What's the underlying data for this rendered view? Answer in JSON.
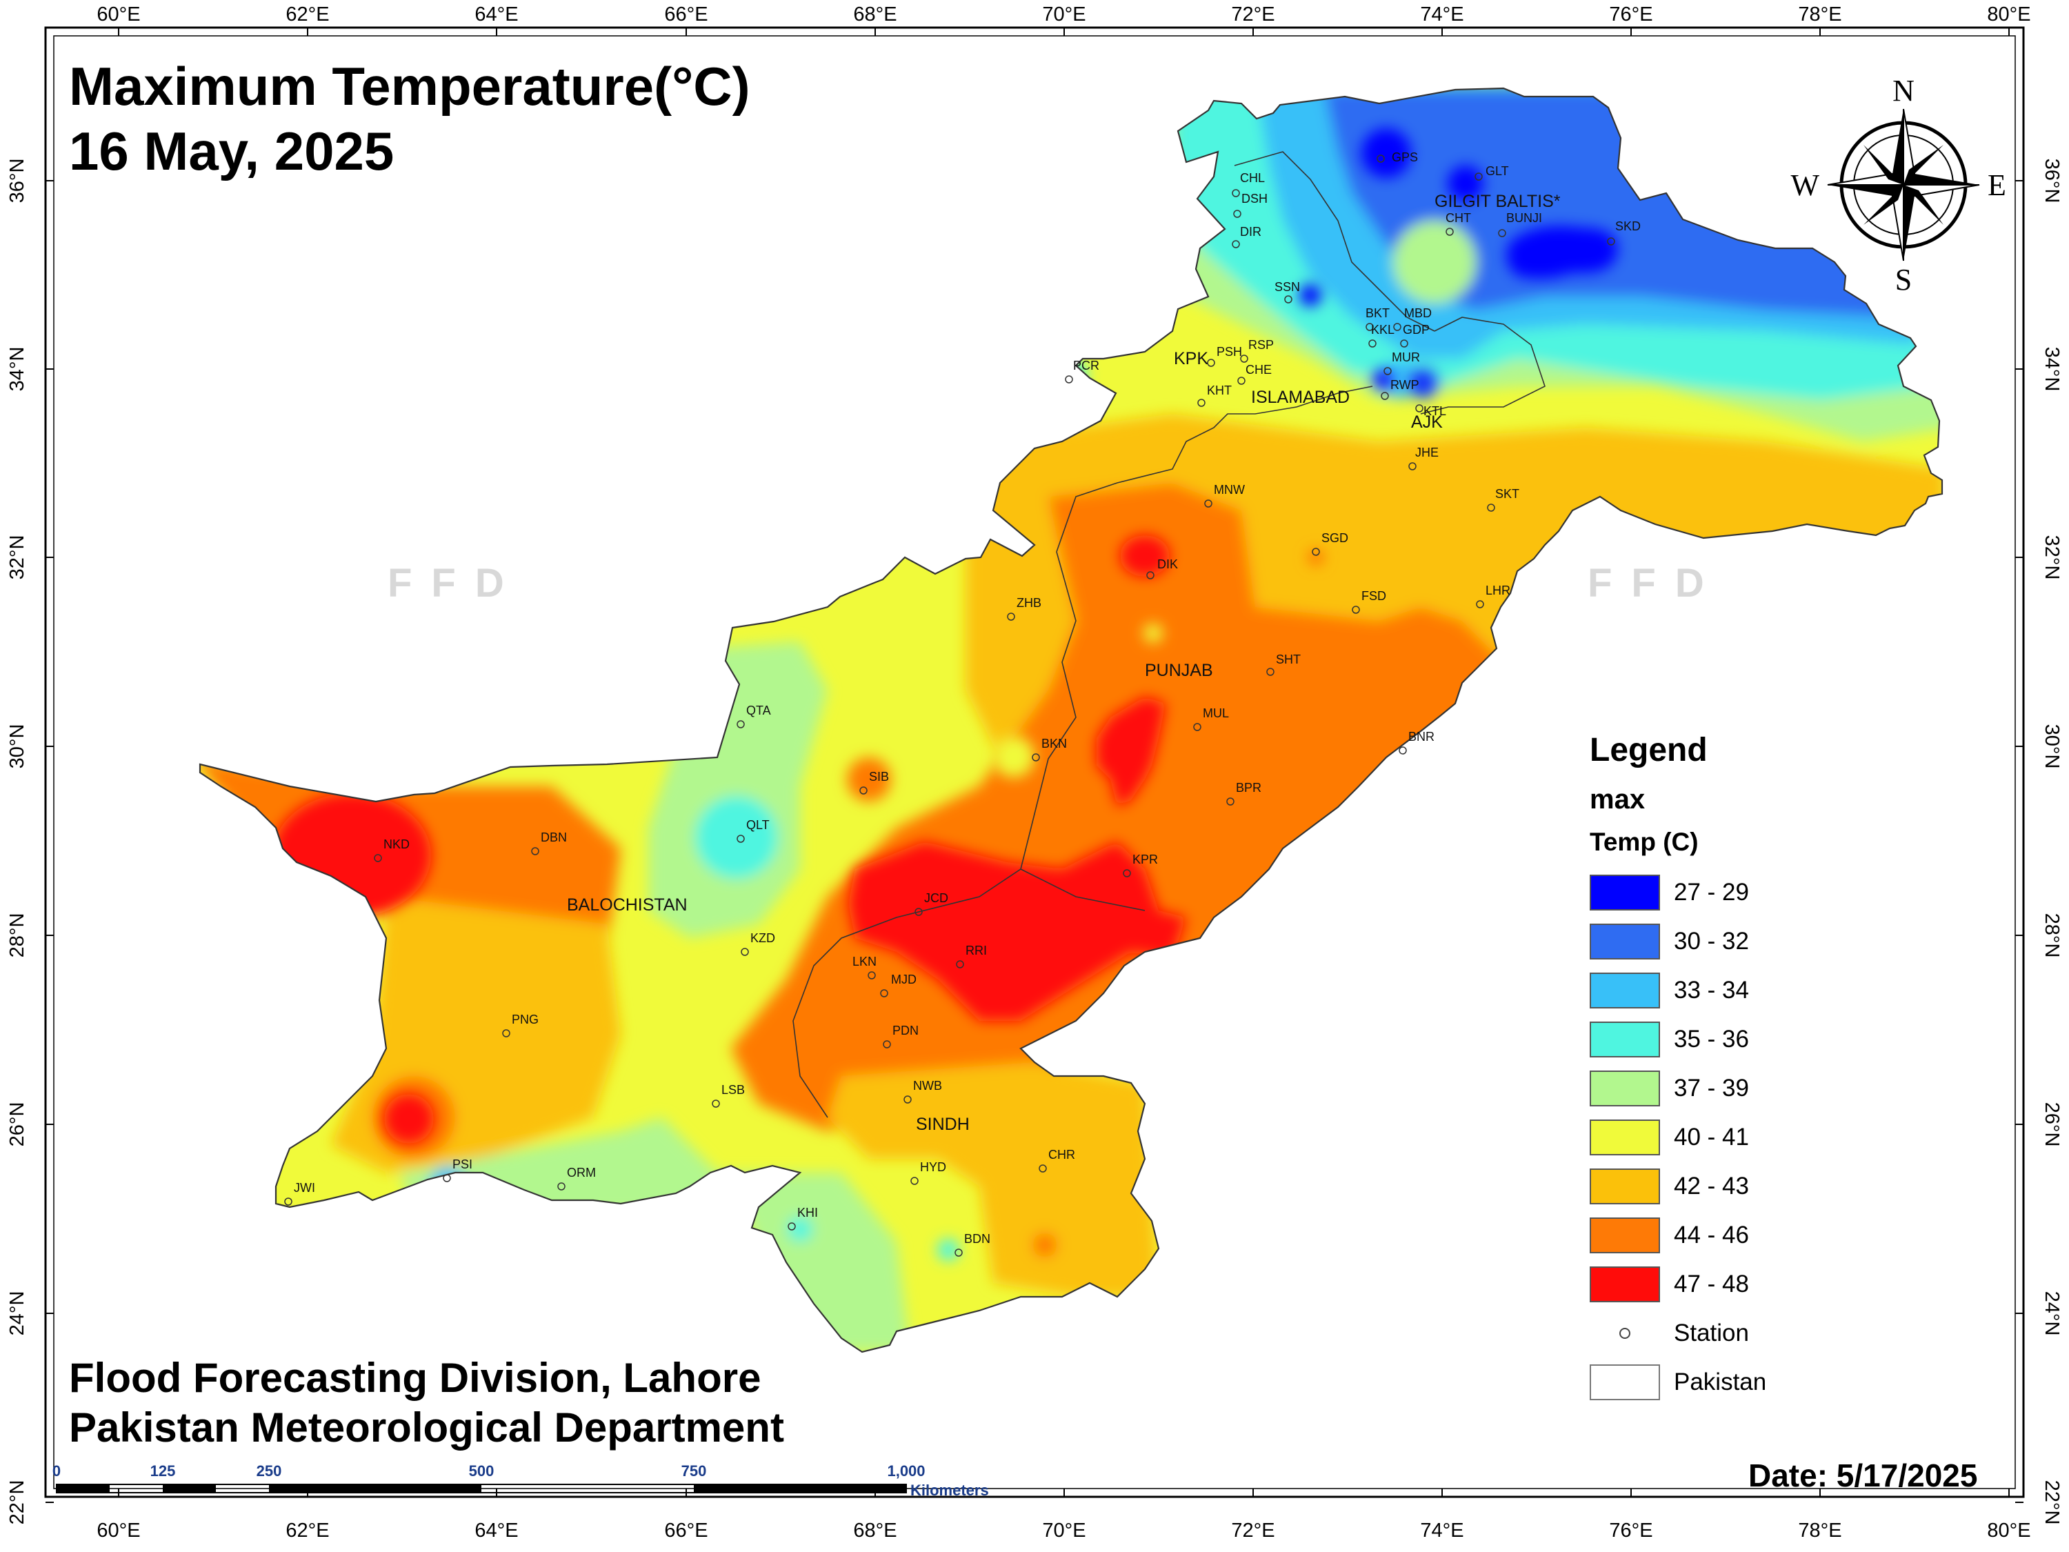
{
  "title": {
    "line1": "Maximum Temperature(°C)",
    "line2": "16 May, 2025"
  },
  "footer": {
    "line1": "Flood Forecasting Division, Lahore",
    "line2": "Pakistan Meteorological Department"
  },
  "date_label": "Date: 5/17/2025",
  "watermark": "FFD",
  "longitude_labels": [
    "60°E",
    "62°E",
    "64°E",
    "66°E",
    "68°E",
    "70°E",
    "72°E",
    "74°E",
    "76°E",
    "78°E",
    "80°E"
  ],
  "latitude_labels": [
    "36°N",
    "34°N",
    "32°N",
    "30°N",
    "28°N",
    "26°N",
    "24°N",
    "22°N"
  ],
  "compass": {
    "n": "N",
    "s": "S",
    "e": "E",
    "w": "W"
  },
  "legend": {
    "title": "Legend",
    "field": "max",
    "unit_label": "Temp (C)",
    "classes": [
      {
        "label": "27 - 29",
        "color": "#0000ff"
      },
      {
        "label": "30 - 32",
        "color": "#2f6cf2"
      },
      {
        "label": "33 - 34",
        "color": "#38c0f8"
      },
      {
        "label": "35 - 36",
        "color": "#4ff5e0"
      },
      {
        "label": "37 - 39",
        "color": "#b2f78e"
      },
      {
        "label": "40 - 41",
        "color": "#f0fa3a"
      },
      {
        "label": "42 - 43",
        "color": "#fbc10a"
      },
      {
        "label": "44 - 46",
        "color": "#fe7a06"
      },
      {
        "label": "47 - 48",
        "color": "#ff0c0a"
      }
    ],
    "station_label": "Station",
    "boundary_label": "Pakistan"
  },
  "scale_bar": {
    "ticks": [
      "0",
      "125",
      "250",
      "500",
      "750",
      "1,000"
    ],
    "unit": "Kilometers"
  },
  "regions": [
    "GILGIT BALTIS*",
    "KPK",
    "ISLAMABAD",
    "AJK",
    "PUNJAB",
    "BALOCHISTAN",
    "SINDH"
  ],
  "stations": [
    "GPS",
    "GLT",
    "CHL",
    "DSH",
    "DIR",
    "CHT",
    "BUNJI",
    "SKD",
    "SSN",
    "BKT",
    "MBD",
    "KKL",
    "GDP",
    "PCR",
    "PSH",
    "RSP",
    "CHE",
    "MUR",
    "KHT",
    "RWP",
    "KTL",
    "JHE",
    "SKT",
    "MNW",
    "SGD",
    "DIK",
    "FSD",
    "LHR",
    "ZHB",
    "SHT",
    "QTA",
    "MUL",
    "BNR",
    "BKN",
    "SIB",
    "BPR",
    "QLT",
    "NKD",
    "DBN",
    "KPR",
    "JCD",
    "RRI",
    "KZD",
    "LKN",
    "MJD",
    "PNG",
    "PDN",
    "LSB",
    "NWB",
    "CHR",
    "PSI",
    "ORM",
    "HYD",
    "JWI",
    "KHI",
    "BDN"
  ]
}
